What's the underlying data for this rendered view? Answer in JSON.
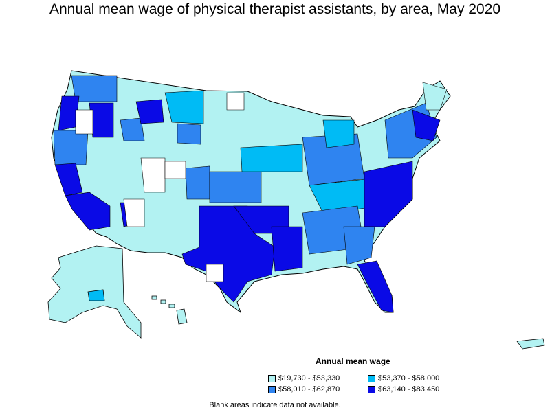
{
  "title": "Annual mean wage of physical therapist assistants, by area, May 2020",
  "legend": {
    "title": "Annual mean wage",
    "items": [
      {
        "label": "$19,730 - $53,330",
        "color": "#b2f2f2"
      },
      {
        "label": "$53,370 - $58,000",
        "color": "#00bbf5"
      },
      {
        "label": "$58,010 - $62,870",
        "color": "#2f84f0"
      },
      {
        "label": "$63,140 - $83,450",
        "color": "#0a0ae6"
      }
    ]
  },
  "note": "Blank areas indicate data not available.",
  "colors": {
    "blank": "#ffffff",
    "border": "#000000"
  }
}
